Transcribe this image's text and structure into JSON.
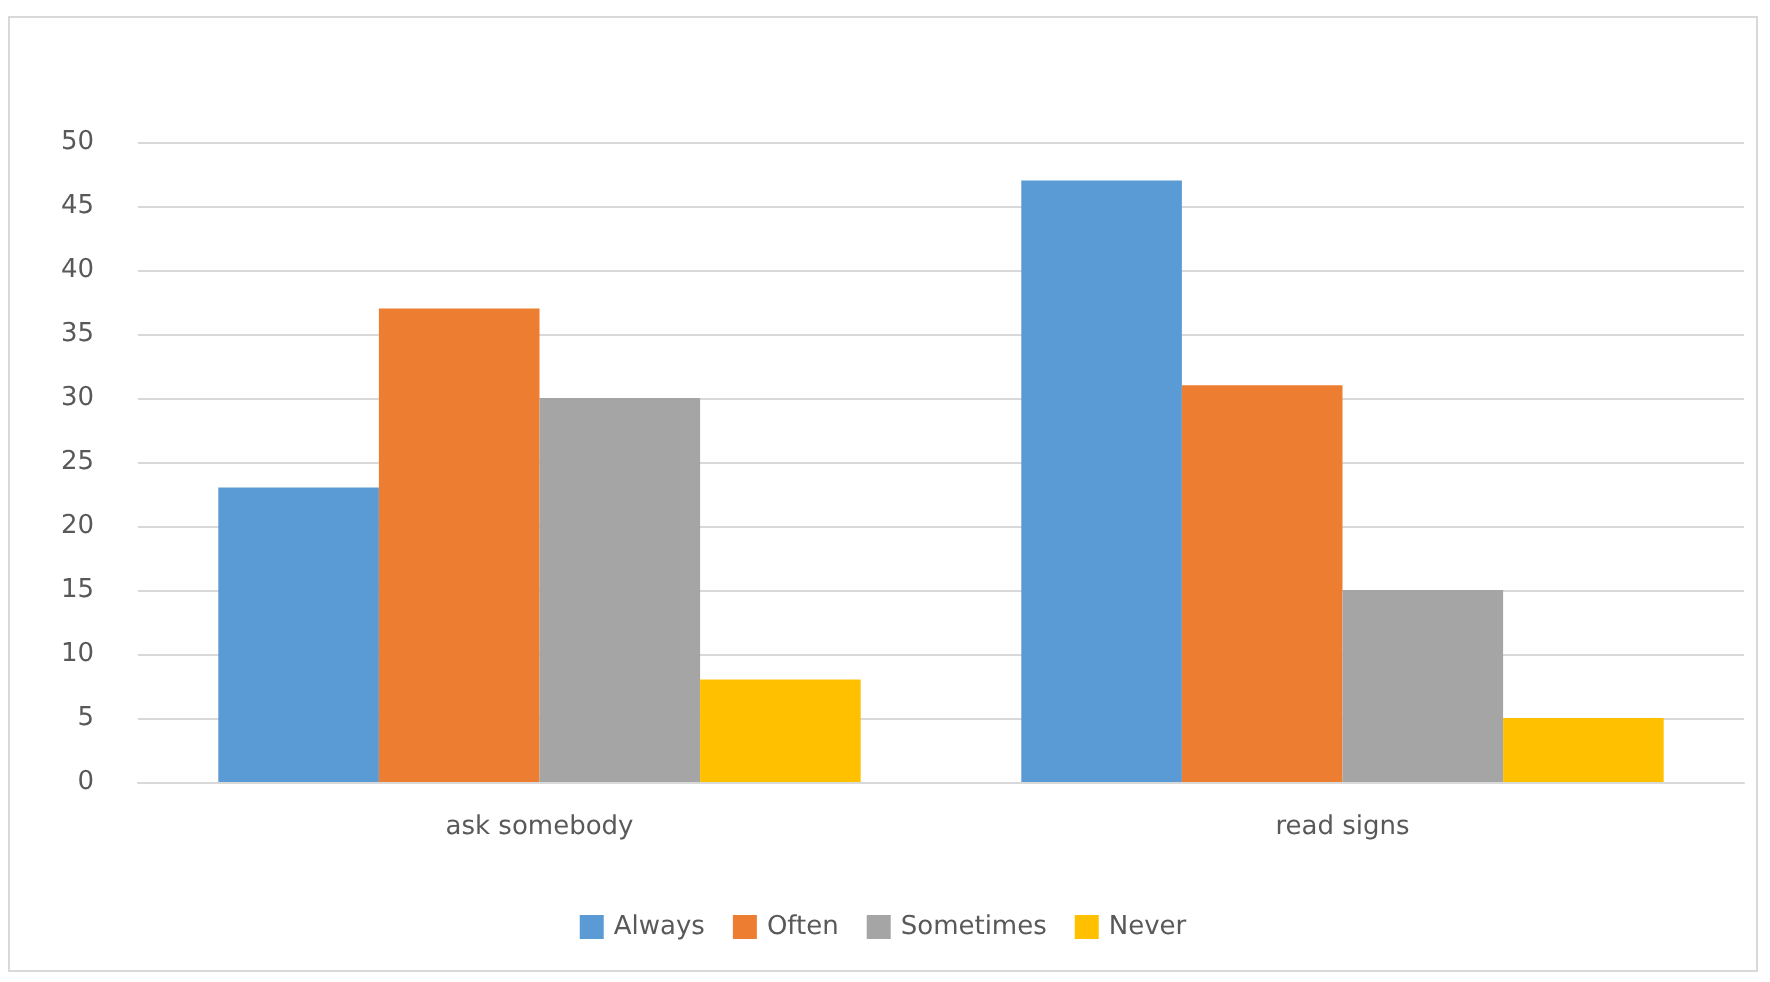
{
  "chart_data": {
    "type": "bar",
    "categories": [
      "ask somebody",
      "read signs"
    ],
    "series": [
      {
        "name": "Always",
        "color": "#5b9bd5",
        "values": [
          23,
          47
        ]
      },
      {
        "name": "Often",
        "color": "#ed7d31",
        "values": [
          37,
          31
        ]
      },
      {
        "name": "Sometimes",
        "color": "#a5a5a5",
        "values": [
          30,
          15
        ]
      },
      {
        "name": "Never",
        "color": "#ffc000",
        "values": [
          8,
          5
        ]
      }
    ],
    "ylim": [
      0,
      50
    ],
    "yticks": [
      0,
      5,
      10,
      15,
      20,
      25,
      30,
      35,
      40,
      45,
      50
    ],
    "grid": "y",
    "legend": "bottom"
  }
}
